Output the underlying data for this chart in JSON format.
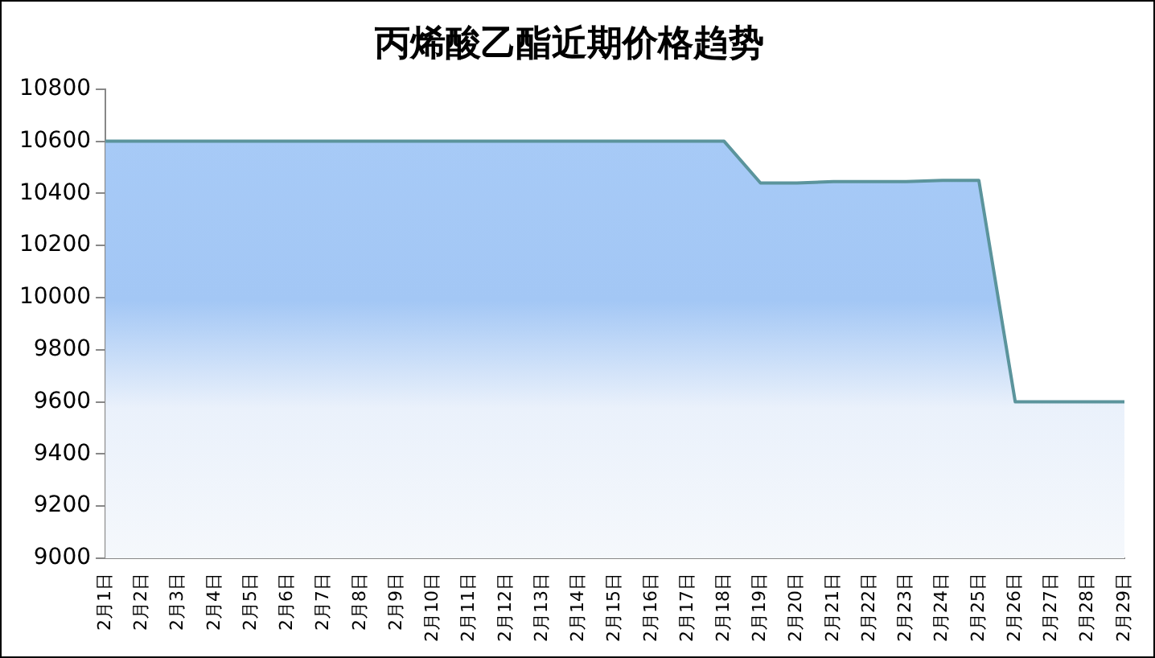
{
  "chart_data": {
    "type": "area",
    "title": "丙烯酸乙酯近期价格趋势",
    "categories": [
      "2月1日",
      "2月2日",
      "2月3日",
      "2月4日",
      "2月5日",
      "2月6日",
      "2月7日",
      "2月8日",
      "2月9日",
      "2月10日",
      "2月11日",
      "2月12日",
      "2月13日",
      "2月14日",
      "2月15日",
      "2月16日",
      "2月17日",
      "2月18日",
      "2月19日",
      "2月20日",
      "2月21日",
      "2月22日",
      "2月23日",
      "2月24日",
      "2月25日",
      "2月26日",
      "2月27日",
      "2月28日",
      "2月29日"
    ],
    "series": [
      {
        "color": "#5b949c",
        "values": [
          10600,
          10600,
          10600,
          10600,
          10600,
          10600,
          10600,
          10600,
          10600,
          10600,
          10600,
          10600,
          10600,
          10600,
          10600,
          10600,
          10600,
          10600,
          10440,
          10440,
          10445,
          10445,
          10445,
          10450,
          10450,
          9600,
          9600,
          9600,
          9600
        ]
      }
    ],
    "ylim": [
      9000,
      10800
    ],
    "yticks": [
      9000,
      9200,
      9400,
      9600,
      9800,
      10000,
      10200,
      10400,
      10600,
      10800
    ],
    "grid": false,
    "legend": false,
    "marker": "none",
    "line_style": "solid"
  }
}
